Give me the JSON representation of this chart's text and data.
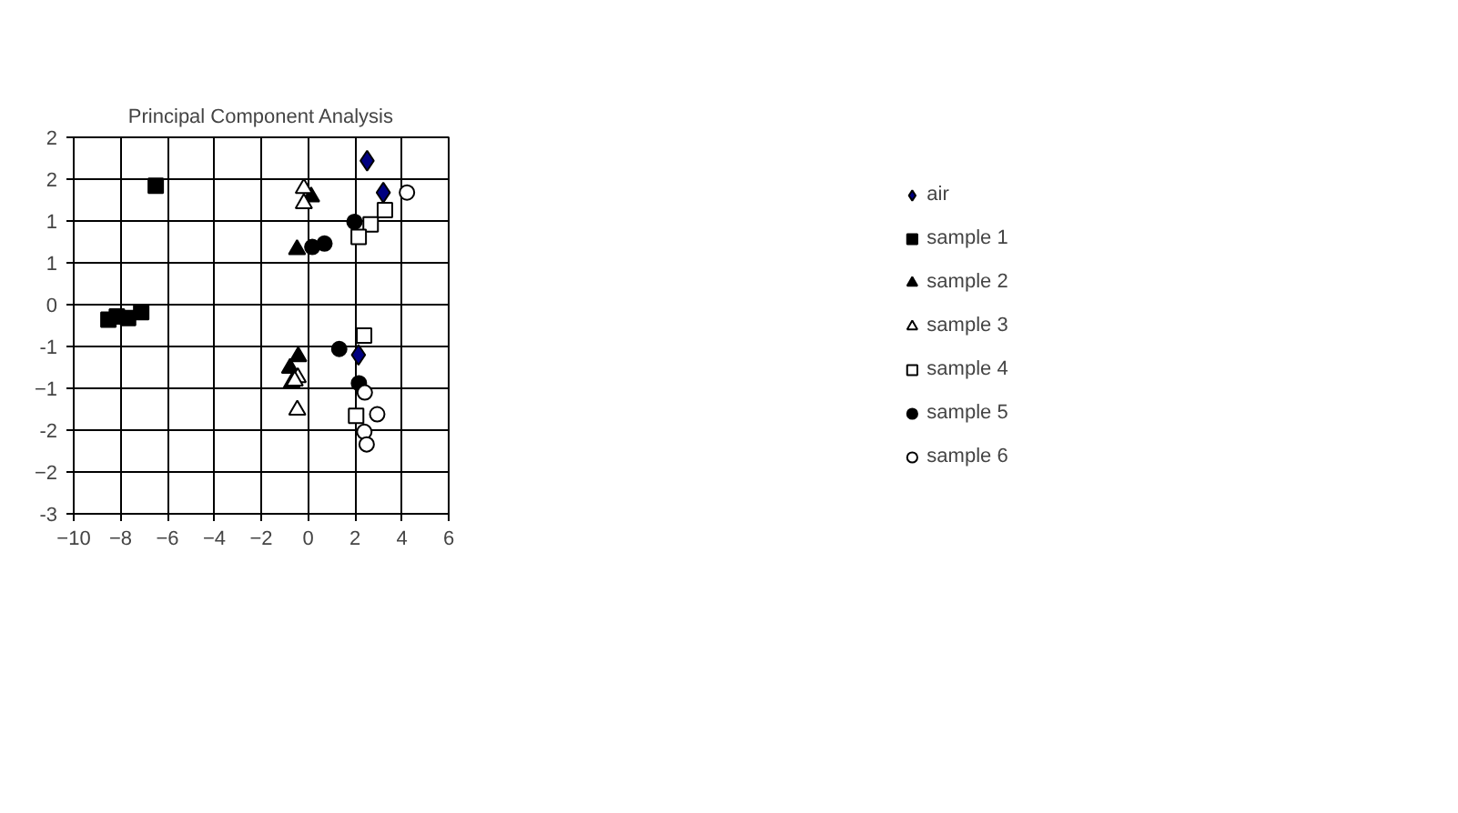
{
  "chart_data": {
    "type": "scatter",
    "title": "Principal Component Analysis",
    "xlim": [
      -10,
      6
    ],
    "xticks": [
      -10,
      -8,
      -6,
      -4,
      -2,
      0,
      2,
      4,
      6
    ],
    "ylim": [
      -2.5,
      2
    ],
    "yticks": [
      2,
      {
        "value": 1.5,
        "label": "2"
      },
      1,
      {
        "value": 0.5,
        "label": "1"
      },
      0,
      {
        "value": -0.5,
        "label": "-1"
      },
      -1,
      {
        "value": -1.5,
        "label": "-2"
      },
      -2,
      {
        "value": -2.5,
        "label": "-3"
      }
    ],
    "grid": true,
    "legend": "right",
    "series": [
      {
        "name": "air",
        "marker": "diamond",
        "color": "#000080",
        "x": [
          2.52,
          3.21,
          2.15
        ],
        "values": [
          1.72,
          1.34,
          -0.6
        ]
      },
      {
        "name": "sample 1",
        "marker": "square",
        "color": "#000000",
        "x": [
          -6.5,
          -8.52,
          -8.16,
          -7.68,
          -7.12
        ],
        "values": [
          1.42,
          -0.18,
          -0.14,
          -0.16,
          -0.09
        ]
      },
      {
        "name": "sample 2",
        "marker": "triangle",
        "color": "#000000",
        "x": [
          0.13,
          -0.47,
          -0.42,
          -0.77,
          -0.7
        ],
        "values": [
          1.29,
          0.66,
          -0.62,
          -0.76,
          -0.94
        ]
      },
      {
        "name": "sample 3",
        "marker": "triangle",
        "color": "#ffffff",
        "x": [
          -0.18,
          -0.18,
          -0.44,
          -0.57,
          -0.46
        ],
        "values": [
          1.39,
          1.21,
          -0.87,
          -0.91,
          -1.26
        ]
      },
      {
        "name": "sample 4",
        "marker": "square",
        "color": "#ffffff",
        "x": [
          3.28,
          2.67,
          2.16,
          2.39,
          2.05
        ],
        "values": [
          1.13,
          0.96,
          0.81,
          -0.37,
          -1.33
        ]
      },
      {
        "name": "sample 5",
        "marker": "circle",
        "color": "#000000",
        "x": [
          1.98,
          0.18,
          0.7,
          1.33,
          2.17
        ],
        "values": [
          0.99,
          0.69,
          0.73,
          -0.53,
          -0.94
        ]
      },
      {
        "name": "sample 6",
        "marker": "circle",
        "color": "#ffffff",
        "x": [
          4.22,
          2.42,
          2.95,
          2.4,
          2.5
        ],
        "values": [
          1.34,
          -1.05,
          -1.31,
          -1.52,
          -1.67
        ]
      }
    ]
  }
}
